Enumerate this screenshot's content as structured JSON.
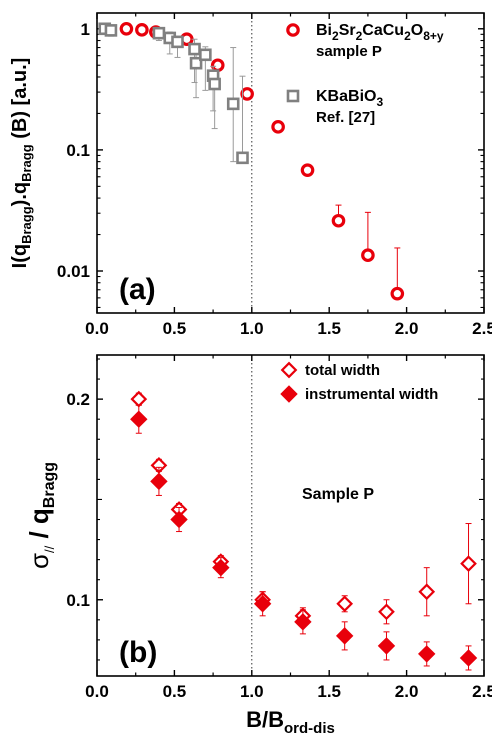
{
  "chart_data": [
    {
      "panel_label": "(a)",
      "type": "scatter",
      "y_scale": "log",
      "xlim": [
        0.0,
        2.5
      ],
      "ylim": [
        0.0045,
        1.35
      ],
      "x_ticks": [
        "0.0",
        "0.5",
        "1.0",
        "1.5",
        "2.0",
        "2.5"
      ],
      "y_ticks": [
        "1",
        "0.1",
        "0.01"
      ],
      "y_tick_values": [
        1,
        0.1,
        0.01
      ],
      "ylabel": {
        "main": "I(q",
        "sub1": "Bragg",
        "mid": ").q",
        "sub2": "Bragg",
        "tail": " (B) [a.u.]"
      },
      "xlabel": "",
      "vline_x": 1.0,
      "legend_placement": "top-right",
      "series": [
        {
          "legend": {
            "formula": [
              [
                "Bi",
                "n"
              ],
              [
                "2",
                "s"
              ],
              [
                "Sr",
                "n"
              ],
              [
                "2",
                "s"
              ],
              [
                "CaCu",
                "n"
              ],
              [
                "2",
                "s"
              ],
              [
                "O",
                "n"
              ],
              [
                "8+y",
                "s"
              ]
            ],
            "line2": "sample P"
          },
          "marker": "open-circle",
          "color": "#e8000b",
          "points": [
            {
              "x": 0.19,
              "y": 1.0
            },
            {
              "x": 0.29,
              "y": 0.98
            },
            {
              "x": 0.38,
              "y": 0.94
            },
            {
              "x": 0.58,
              "y": 0.82
            },
            {
              "x": 0.78,
              "y": 0.5
            },
            {
              "x": 0.97,
              "y": 0.29
            },
            {
              "x": 1.17,
              "y": 0.155
            },
            {
              "x": 1.36,
              "y": 0.068
            },
            {
              "x": 1.56,
              "y": 0.026,
              "err_up": 0.009
            },
            {
              "x": 1.75,
              "y": 0.0135,
              "err_up": 0.017
            },
            {
              "x": 1.94,
              "y": 0.0065,
              "err_up": 0.009
            }
          ]
        },
        {
          "legend": {
            "formula": [
              [
                "KBaBiO",
                "n"
              ],
              [
                "3",
                "s"
              ]
            ],
            "line2": "Ref. [27]"
          },
          "marker": "open-square",
          "color": "#808080",
          "points": [
            {
              "x": 0.05,
              "y": 1.0,
              "err_up": 0.08,
              "err_dn": 0.1
            },
            {
              "x": 0.09,
              "y": 0.97,
              "err_up": 0.06,
              "err_dn": 0.1
            },
            {
              "x": 0.4,
              "y": 0.92,
              "err_up": 0.08,
              "err_dn": 0.12
            },
            {
              "x": 0.47,
              "y": 0.84,
              "err_up": 0.1,
              "err_dn": 0.22
            },
            {
              "x": 0.52,
              "y": 0.78,
              "err_up": 0.08,
              "err_dn": 0.2
            },
            {
              "x": 0.63,
              "y": 0.68,
              "err_up": 0.14,
              "err_dn": 0.32
            },
            {
              "x": 0.64,
              "y": 0.52,
              "err_up": 0.12,
              "err_dn": 0.25
            },
            {
              "x": 0.7,
              "y": 0.61,
              "err_up": 0.1,
              "err_dn": 0.3
            },
            {
              "x": 0.75,
              "y": 0.41,
              "err_up": 0.08,
              "err_dn": 0.2
            },
            {
              "x": 0.76,
              "y": 0.35,
              "err_up": 0.1,
              "err_dn": 0.2
            },
            {
              "x": 0.88,
              "y": 0.24,
              "err_up": 0.46,
              "err_dn": 0.16
            },
            {
              "x": 0.94,
              "y": 0.086,
              "err_up": 0.32,
              "err_dn": 0.0
            }
          ]
        }
      ]
    },
    {
      "panel_label": "(b)",
      "type": "scatter",
      "y_scale": "linear",
      "xlim": [
        0.0,
        2.5
      ],
      "ylim": [
        0.062,
        0.222
      ],
      "x_ticks": [
        "0.0",
        "0.5",
        "1.0",
        "1.5",
        "2.0",
        "2.5"
      ],
      "y_ticks": [
        "0.2",
        "0.1"
      ],
      "y_tick_values": [
        0.2,
        0.1
      ],
      "ylabel": {
        "main": "σ",
        "sub1": "//",
        "mid": " / q",
        "sub2": "Bragg",
        "tail": ""
      },
      "xlabel": {
        "main": "B/B",
        "sub": "ord-dis"
      },
      "annotation": "Sample P",
      "vline_x": 1.0,
      "legend_placement": "top-right",
      "series": [
        {
          "legend": {
            "label": "total width"
          },
          "marker": "open-diamond",
          "color": "#e8000b",
          "points": [
            {
              "x": 0.27,
              "y": 0.2,
              "err": 0.003
            },
            {
              "x": 0.4,
              "y": 0.167,
              "err": 0.003
            },
            {
              "x": 0.53,
              "y": 0.145,
              "err": 0.003
            },
            {
              "x": 0.8,
              "y": 0.119,
              "err": 0.003
            },
            {
              "x": 1.07,
              "y": 0.1,
              "err": 0.004
            },
            {
              "x": 1.33,
              "y": 0.092,
              "err": 0.004
            },
            {
              "x": 1.6,
              "y": 0.098,
              "err": 0.004
            },
            {
              "x": 1.87,
              "y": 0.094,
              "err": 0.006
            },
            {
              "x": 2.13,
              "y": 0.104,
              "err": 0.012
            },
            {
              "x": 2.4,
              "y": 0.118,
              "err": 0.02
            }
          ]
        },
        {
          "legend": {
            "label": "instrumental width"
          },
          "marker": "filled-diamond",
          "color": "#e8000b",
          "points": [
            {
              "x": 0.27,
              "y": 0.19,
              "err": 0.007
            },
            {
              "x": 0.4,
              "y": 0.159,
              "err": 0.007
            },
            {
              "x": 0.53,
              "y": 0.14,
              "err": 0.006
            },
            {
              "x": 0.8,
              "y": 0.116,
              "err": 0.005
            },
            {
              "x": 1.07,
              "y": 0.098,
              "err": 0.006
            },
            {
              "x": 1.33,
              "y": 0.089,
              "err": 0.006
            },
            {
              "x": 1.6,
              "y": 0.082,
              "err": 0.007
            },
            {
              "x": 1.87,
              "y": 0.077,
              "err": 0.007
            },
            {
              "x": 2.13,
              "y": 0.073,
              "err": 0.006
            },
            {
              "x": 2.4,
              "y": 0.071,
              "err": 0.006
            }
          ]
        }
      ]
    }
  ]
}
